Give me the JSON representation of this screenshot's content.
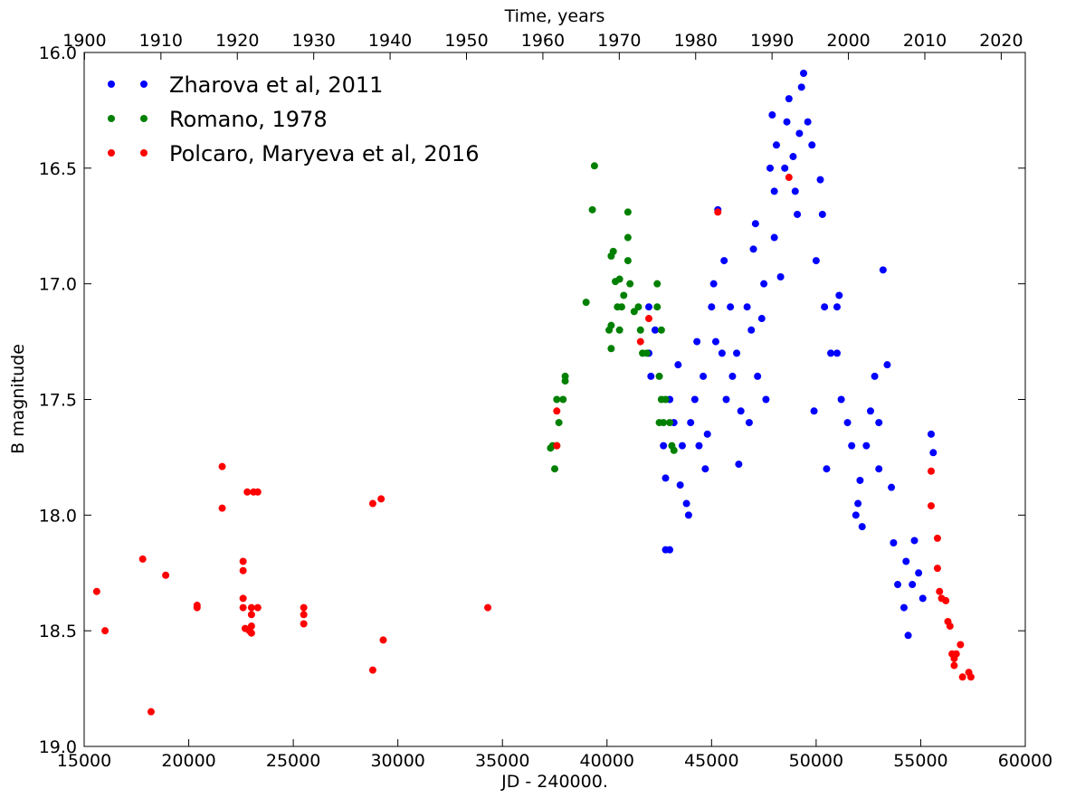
{
  "chart_data": {
    "type": "scatter",
    "x_label": "JD - 240000.",
    "y_label": "B magnitude",
    "x2_label": "Time, years",
    "xlim": [
      15000,
      60000
    ],
    "xticks": [
      15000,
      20000,
      25000,
      30000,
      35000,
      40000,
      45000,
      50000,
      55000,
      60000
    ],
    "x2lim": [
      1899.95,
      2023.15
    ],
    "x2ticks": [
      1900,
      1910,
      1920,
      1930,
      1940,
      1950,
      1960,
      1970,
      1980,
      1990,
      2000,
      2010,
      2020
    ],
    "ylim": [
      19.0,
      16.0
    ],
    "yticks": [
      {
        "value": 16.0,
        "label": "16.0"
      },
      {
        "value": 16.5,
        "label": "16.5"
      },
      {
        "value": 17.0,
        "label": "17.0"
      },
      {
        "value": 17.5,
        "label": "17.5"
      },
      {
        "value": 18.0,
        "label": "18.0"
      },
      {
        "value": 18.5,
        "label": "18.5"
      },
      {
        "value": 19.0,
        "label": "19.0"
      }
    ],
    "legend": "upper left",
    "series": [
      {
        "name": "Zharova et al, 2011",
        "color": "#0000ff",
        "x": [
          42000,
          42000,
          42100,
          42300,
          42700,
          42800,
          42800,
          43000,
          43200,
          43400,
          43500,
          43600,
          43800,
          43900,
          44000,
          44200,
          44300,
          44400,
          44600,
          44700,
          45000,
          45100,
          45300,
          45500,
          45600,
          45700,
          45900,
          46000,
          46200,
          46300,
          46400,
          46700,
          46900,
          47000,
          47100,
          47200,
          47400,
          47600,
          47800,
          47900,
          48000,
          48100,
          48300,
          48500,
          48600,
          48700,
          48900,
          49100,
          49300,
          49400,
          49600,
          49800,
          49900,
          50000,
          50200,
          50300,
          50400,
          50700,
          51000,
          51100,
          51200,
          51500,
          51700,
          51900,
          52100,
          52200,
          52400,
          52600,
          52800,
          53000,
          53200,
          53400,
          53600,
          53700,
          53900,
          54200,
          54400,
          54600,
          54700,
          54900,
          55100,
          55500,
          55600,
          46800,
          48000,
          49000,
          50500,
          52000,
          44800,
          43000,
          45200,
          47500,
          49200,
          51000,
          53000,
          54300
        ],
        "values": [
          17.1,
          17.3,
          17.4,
          17.2,
          17.7,
          17.84,
          18.15,
          18.15,
          17.6,
          17.35,
          17.87,
          17.7,
          17.95,
          18.0,
          17.6,
          17.5,
          17.25,
          17.7,
          17.4,
          17.8,
          17.1,
          17.0,
          16.68,
          17.3,
          16.9,
          17.5,
          17.1,
          17.4,
          17.3,
          17.78,
          17.55,
          17.1,
          17.2,
          16.85,
          16.74,
          17.4,
          17.15,
          17.5,
          16.5,
          16.27,
          16.6,
          16.4,
          16.97,
          16.5,
          16.3,
          16.2,
          16.45,
          16.7,
          16.15,
          16.09,
          16.3,
          16.4,
          17.55,
          16.9,
          16.55,
          16.7,
          17.1,
          17.3,
          17.1,
          17.05,
          17.5,
          17.6,
          17.7,
          18.0,
          17.85,
          18.05,
          17.7,
          17.55,
          17.4,
          17.6,
          16.94,
          17.35,
          17.88,
          18.12,
          18.3,
          18.4,
          18.52,
          18.3,
          18.11,
          18.25,
          18.36,
          17.65,
          17.73,
          17.6,
          16.8,
          16.6,
          17.8,
          17.95,
          17.65,
          17.5,
          17.25,
          17.0,
          16.35,
          17.3,
          17.8,
          18.2
        ]
      },
      {
        "name": "Romano, 1978",
        "color": "#008000",
        "x": [
          37300,
          37400,
          37500,
          37600,
          37700,
          37600,
          37900,
          38000,
          38000,
          39000,
          39300,
          39400,
          40200,
          40200,
          40200,
          40300,
          40400,
          40500,
          40600,
          40600,
          40800,
          41000,
          41000,
          41000,
          41100,
          41300,
          41500,
          41600,
          41700,
          41900,
          42400,
          42400,
          42600,
          42500,
          42600,
          42700,
          42800,
          43000,
          43100,
          43200,
          42500,
          40100,
          40700
        ],
        "values": [
          17.71,
          17.7,
          17.8,
          17.7,
          17.6,
          17.5,
          17.5,
          17.42,
          17.4,
          17.08,
          16.68,
          16.49,
          17.28,
          17.18,
          16.88,
          16.86,
          16.99,
          17.1,
          16.98,
          17.2,
          17.05,
          16.8,
          16.69,
          16.9,
          17.0,
          17.12,
          17.1,
          17.2,
          17.3,
          17.3,
          17.0,
          17.1,
          17.2,
          17.4,
          17.5,
          17.6,
          17.5,
          17.6,
          17.7,
          17.72,
          17.6,
          17.2,
          17.1
        ]
      },
      {
        "name": "Polcaro, Maryeva et al, 2016",
        "color": "#ff0000",
        "x": [
          15600,
          16000,
          17800,
          18200,
          18900,
          20400,
          20400,
          21600,
          21600,
          22600,
          22600,
          22600,
          22600,
          22800,
          22700,
          22900,
          23000,
          23000,
          23000,
          23000,
          23100,
          23300,
          23300,
          25500,
          25500,
          25500,
          28800,
          28800,
          29200,
          29300,
          34300,
          37600,
          37600,
          41600,
          42000,
          45300,
          48700,
          55500,
          55500,
          55800,
          55800,
          55900,
          56000,
          56200,
          56300,
          56400,
          56500,
          56600,
          56600,
          56700,
          56900,
          57000,
          57300,
          57400
        ],
        "values": [
          18.33,
          18.5,
          18.19,
          18.85,
          18.26,
          18.39,
          18.4,
          17.79,
          17.97,
          18.2,
          18.24,
          18.36,
          18.4,
          17.9,
          18.49,
          18.5,
          18.48,
          18.51,
          18.43,
          18.4,
          17.9,
          17.9,
          18.4,
          18.4,
          18.43,
          18.47,
          17.95,
          18.67,
          17.93,
          18.54,
          18.4,
          17.55,
          17.7,
          17.25,
          17.15,
          16.69,
          16.54,
          17.81,
          17.96,
          18.1,
          18.23,
          18.33,
          18.36,
          18.37,
          18.46,
          18.48,
          18.6,
          18.62,
          18.65,
          18.6,
          18.56,
          18.7,
          18.68,
          18.7
        ]
      }
    ]
  }
}
